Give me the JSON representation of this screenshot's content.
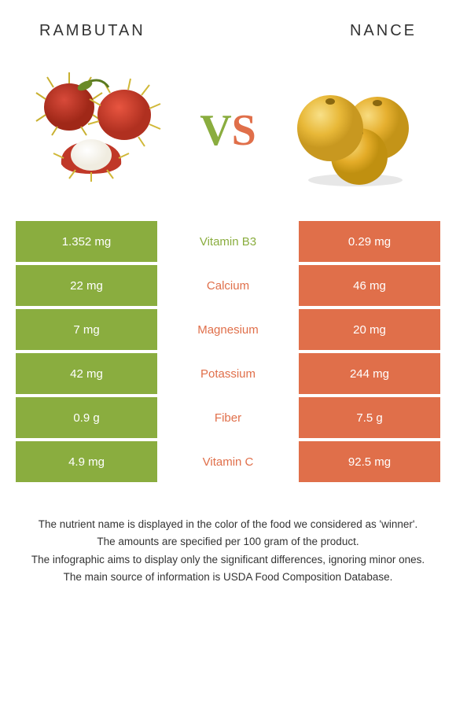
{
  "header": {
    "left_title": "RAMBUTAN",
    "right_title": "NANCE"
  },
  "vs": {
    "v": "V",
    "s": "S"
  },
  "colors": {
    "left": "#8aad3f",
    "right": "#e06f4a",
    "text": "#333333"
  },
  "rows": [
    {
      "left": "1.352 mg",
      "mid": "Vitamin B3",
      "right": "0.29 mg",
      "winner": "left"
    },
    {
      "left": "22 mg",
      "mid": "Calcium",
      "right": "46 mg",
      "winner": "right"
    },
    {
      "left": "7 mg",
      "mid": "Magnesium",
      "right": "20 mg",
      "winner": "right"
    },
    {
      "left": "42 mg",
      "mid": "Potassium",
      "right": "244 mg",
      "winner": "right"
    },
    {
      "left": "0.9 g",
      "mid": "Fiber",
      "right": "7.5 g",
      "winner": "right"
    },
    {
      "left": "4.9 mg",
      "mid": "Vitamin C",
      "right": "92.5 mg",
      "winner": "right"
    }
  ],
  "footer": {
    "line1": "The nutrient name is displayed in the color of the food we considered as 'winner'.",
    "line2": "The amounts are specified per 100 gram of the product.",
    "line3": "The infographic aims to display only the significant differences, ignoring minor ones.",
    "line4": "The main source of information is USDA Food Composition Database."
  }
}
